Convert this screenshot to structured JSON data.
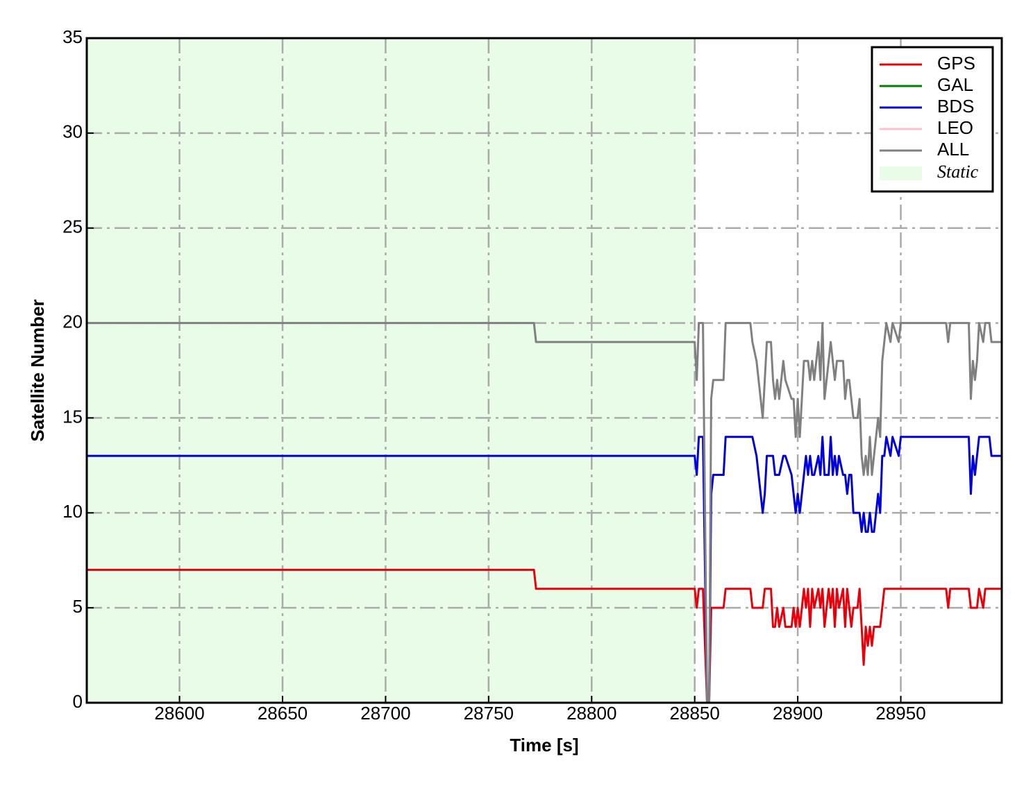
{
  "chart_data": {
    "type": "line",
    "xlabel": "Time [s]",
    "ylabel": "Satellite Number",
    "xlim": [
      28555,
      28999
    ],
    "ylim": [
      0,
      35
    ],
    "xticks": [
      28600,
      28650,
      28700,
      28750,
      28800,
      28850,
      28900,
      28950
    ],
    "yticks": [
      0,
      5,
      10,
      15,
      20,
      25,
      30,
      35
    ],
    "grid": true,
    "legend": "upper right",
    "shaded_region": {
      "label": "Static",
      "x": [
        28555,
        28850
      ],
      "color": "#e8fce8"
    },
    "x": [
      28555,
      28772,
      28773,
      28850,
      28851,
      28852,
      28854,
      28856,
      28857,
      28858,
      28859,
      28864,
      28865,
      28877,
      28878,
      28880,
      28882,
      28883,
      28884,
      28885,
      28887,
      28888,
      28889,
      28890,
      28891,
      28893,
      28894,
      28897,
      28898,
      28899,
      28900,
      28901,
      28902,
      28903,
      28904,
      28905,
      28906,
      28907,
      28908,
      28910,
      28911,
      28912,
      28913,
      28915,
      28916,
      28917,
      28918,
      28919,
      28920,
      28922,
      28923,
      28924,
      28925,
      28926,
      28927,
      28929,
      28930,
      28931,
      28932,
      28933,
      28934,
      28935,
      28936,
      28937,
      28938,
      28939,
      28940,
      28941,
      28942,
      28943,
      28945,
      28946,
      28949,
      28950,
      28972,
      28973,
      28974,
      28983,
      28984,
      28985,
      28986,
      28987,
      28988,
      28990,
      28991,
      28993,
      28994,
      28999
    ],
    "series": [
      {
        "name": "GPS",
        "color": "#e8000b",
        "values": [
          7,
          7,
          6,
          6,
          5,
          6,
          6,
          0,
          0,
          5,
          5,
          5,
          6,
          6,
          5,
          5,
          5,
          5,
          6,
          6,
          6,
          4,
          4,
          5,
          4,
          5,
          4,
          4,
          5,
          4,
          5,
          4,
          5,
          6,
          5,
          6,
          4,
          6,
          5,
          6,
          5,
          6,
          4,
          6,
          5,
          6,
          4,
          6,
          5,
          6,
          4,
          6,
          5,
          4,
          5,
          5,
          6,
          4,
          2,
          4,
          3,
          4,
          3,
          4,
          4,
          4,
          4,
          5,
          6,
          6,
          6,
          6,
          6,
          6,
          6,
          5,
          6,
          6,
          5,
          5,
          5,
          5,
          6,
          5,
          6,
          6,
          6,
          6
        ]
      },
      {
        "name": "GAL",
        "color": "#008000",
        "values": [
          0,
          0,
          0,
          0,
          0,
          0,
          0,
          0,
          0,
          0,
          0,
          0,
          0,
          0,
          0,
          0,
          0,
          0,
          0,
          0,
          0,
          0,
          0,
          0,
          0,
          0,
          0,
          0,
          0,
          0,
          0,
          0,
          0,
          0,
          0,
          0,
          0,
          0,
          0,
          0,
          0,
          0,
          0,
          0,
          0,
          0,
          0,
          0,
          0,
          0,
          0,
          0,
          0,
          0,
          0,
          0,
          0,
          0,
          0,
          0,
          0,
          0,
          0,
          0,
          0,
          0,
          0,
          0,
          0,
          0,
          0,
          0,
          0,
          0,
          0,
          0,
          0,
          0,
          0,
          0,
          0,
          0,
          0,
          0,
          0,
          0,
          0,
          0
        ]
      },
      {
        "name": "BDS",
        "color": "#0000dd",
        "values": [
          13,
          13,
          13,
          13,
          12,
          14,
          14,
          0,
          0,
          11,
          12,
          12,
          14,
          14,
          14,
          13,
          11,
          10,
          11,
          13,
          13,
          13,
          12,
          12,
          12,
          13,
          13,
          12,
          11,
          10,
          11,
          10,
          11,
          12,
          13,
          12,
          13,
          12,
          12,
          13,
          12,
          14,
          12,
          12,
          14,
          12,
          13,
          12,
          13,
          12,
          12,
          11,
          12,
          12,
          10,
          10,
          10,
          9,
          10,
          9,
          9,
          10,
          9,
          9,
          10,
          11,
          10,
          13,
          13,
          14,
          13,
          14,
          13,
          14,
          14,
          14,
          14,
          14,
          11,
          13,
          12,
          13,
          14,
          14,
          14,
          14,
          13,
          13
        ]
      },
      {
        "name": "LEO",
        "color": "#ffc0cb",
        "values": [
          0,
          0,
          0,
          0,
          0,
          0,
          0,
          0,
          0,
          0,
          0,
          0,
          0,
          0,
          0,
          0,
          0,
          0,
          0,
          0,
          0,
          0,
          0,
          0,
          0,
          0,
          0,
          0,
          0,
          0,
          0,
          0,
          0,
          0,
          0,
          0,
          0,
          0,
          0,
          0,
          0,
          0,
          0,
          0,
          0,
          0,
          0,
          0,
          0,
          0,
          0,
          0,
          0,
          0,
          0,
          0,
          0,
          0,
          0,
          0,
          0,
          0,
          0,
          0,
          0,
          0,
          0,
          0,
          0,
          0,
          0,
          0,
          0,
          0,
          0,
          0,
          0,
          0,
          0,
          0,
          0,
          0,
          0,
          0,
          0,
          0,
          0,
          0
        ]
      },
      {
        "name": "ALL",
        "color": "#808080",
        "values": [
          20,
          20,
          19,
          19,
          17,
          20,
          20,
          0,
          0,
          16,
          17,
          17,
          20,
          20,
          19,
          18,
          16,
          15,
          17,
          19,
          19,
          17,
          16,
          17,
          16,
          18,
          17,
          16,
          16,
          14,
          16,
          14,
          16,
          18,
          18,
          18,
          17,
          18,
          17,
          19,
          17,
          20,
          16,
          18,
          19,
          18,
          17,
          18,
          18,
          18,
          16,
          17,
          17,
          16,
          15,
          15,
          16,
          13,
          12,
          13,
          12,
          14,
          12,
          13,
          14,
          15,
          14,
          18,
          19,
          20,
          19,
          20,
          19,
          20,
          20,
          19,
          20,
          20,
          16,
          18,
          17,
          18,
          20,
          19,
          20,
          20,
          19,
          19
        ]
      }
    ]
  }
}
